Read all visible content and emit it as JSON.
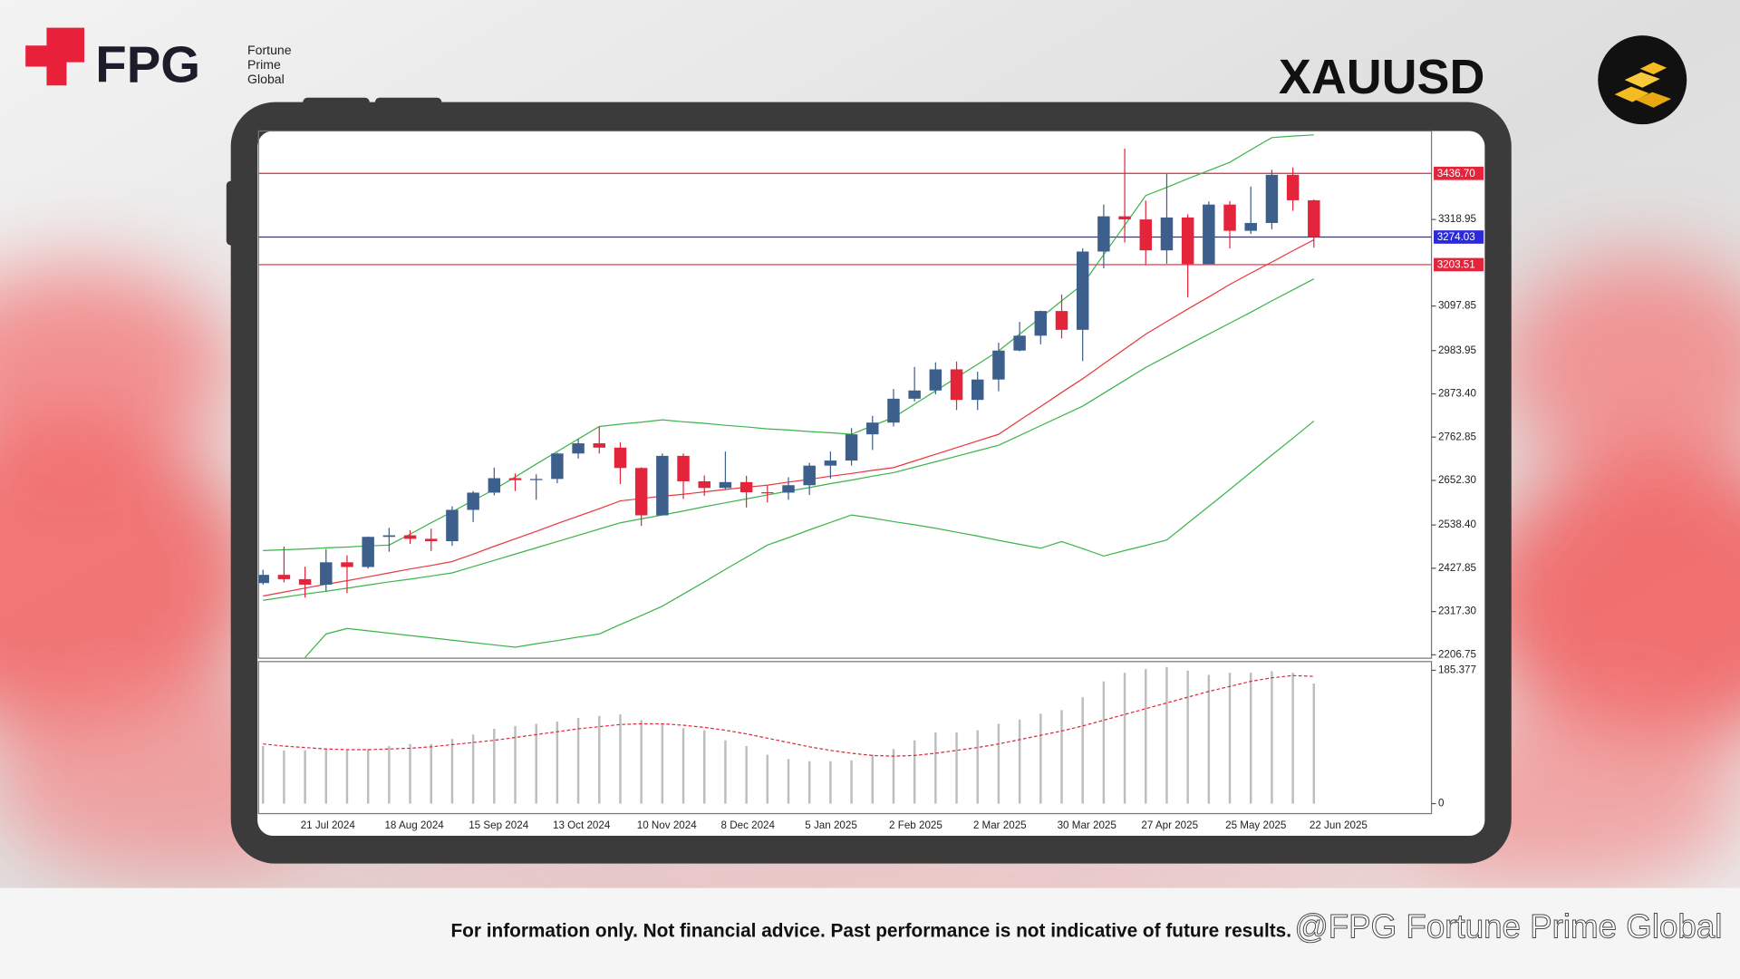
{
  "header": {
    "brand": "FPG",
    "brand_sub": [
      "Fortune",
      "Prime",
      "Global"
    ],
    "symbol": "XAUUSD"
  },
  "footer": {
    "disclaimer": "For information only. Not financial advice. Past performance is not indicative of future results.",
    "watermark": "@FPG Fortune Prime Global"
  },
  "chart_data": [
    {
      "type": "candlestick",
      "categories": [
        null,
        null,
        "21 Jul 2024",
        null,
        null,
        null,
        "18 Aug 2024",
        null,
        null,
        null,
        "15 Sep 2024",
        null,
        null,
        null,
        "13 Oct 2024",
        null,
        null,
        null,
        "10 Nov 2024",
        null,
        null,
        null,
        "8 Dec 2024",
        null,
        null,
        null,
        "5 Jan 2025",
        null,
        null,
        null,
        "2 Feb 2025",
        null,
        null,
        null,
        "2 Mar 2025",
        null,
        null,
        null,
        "30 Mar 2025",
        null,
        null,
        null,
        "27 Apr 2025",
        null,
        null,
        null,
        "25 May 2025",
        null,
        null,
        null,
        "22 Jun 2025"
      ],
      "open": [
        2390,
        2411,
        2400,
        2386,
        2443,
        2431,
        2508,
        2512,
        2503,
        2497,
        2577,
        2621,
        2658,
        2653,
        2656,
        2721,
        2747,
        2736,
        2684,
        2563,
        2715,
        2650,
        2633,
        2648,
        2622,
        2621,
        2640,
        2690,
        2703,
        2770,
        2800,
        2861,
        2882,
        2936,
        2858,
        2910,
        2984,
        3022,
        3085,
        3037,
        3237,
        3327,
        3319,
        3240,
        3324,
        3205,
        3357,
        3290,
        3310,
        3433,
        3368
      ],
      "high": [
        2424,
        2483,
        2432,
        2477,
        2461,
        2509,
        2531,
        2525,
        2529,
        2586,
        2625,
        2685,
        2670,
        2668,
        2723,
        2758,
        2790,
        2750,
        2686,
        2721,
        2721,
        2665,
        2726,
        2664,
        2639,
        2660,
        2697,
        2726,
        2786,
        2817,
        2886,
        2942,
        2954,
        2956,
        2930,
        3004,
        3057,
        3086,
        3127,
        3245,
        3357,
        3500,
        3367,
        3435,
        3332,
        3365,
        3366,
        3403,
        3446,
        3452,
        3370
      ],
      "low": [
        2386,
        2392,
        2353,
        2369,
        2364,
        2427,
        2470,
        2490,
        2472,
        2485,
        2546,
        2614,
        2625,
        2603,
        2645,
        2708,
        2721,
        2643,
        2536,
        2563,
        2605,
        2613,
        2630,
        2583,
        2596,
        2603,
        2615,
        2657,
        2690,
        2730,
        2790,
        2854,
        2872,
        2832,
        2832,
        2880,
        2982,
        3000,
        3015,
        2957,
        3194,
        3260,
        3202,
        3206,
        3120,
        3205,
        3245,
        3282,
        3294,
        3341,
        3247
      ],
      "close": [
        2411,
        2400,
        2386,
        2443,
        2431,
        2508,
        2512,
        2503,
        2497,
        2577,
        2621,
        2658,
        2653,
        2656,
        2721,
        2747,
        2736,
        2684,
        2563,
        2715,
        2650,
        2633,
        2648,
        2622,
        2621,
        2640,
        2690,
        2703,
        2770,
        2800,
        2861,
        2882,
        2936,
        2858,
        2910,
        2984,
        3022,
        3085,
        3037,
        3237,
        3327,
        3319,
        3240,
        3324,
        3205,
        3357,
        3290,
        3310,
        3433,
        3368,
        3274
      ],
      "up_color": "#3d5f8c",
      "down_color": "#e3243b",
      "series": [
        {
          "color": "#e8383d",
          "values": [
            2357,
            2367,
            2377,
            2387,
            2396,
            2406,
            2416,
            2426,
            2435,
            2445,
            2464,
            2484,
            2503,
            2522,
            2542,
            2561,
            2580,
            2600,
            2606,
            2612,
            2617,
            2623,
            2629,
            2635,
            2640,
            2648,
            2655,
            2663,
            2670,
            2678,
            2685,
            2702,
            2719,
            2736,
            2753,
            2770,
            2806,
            2841,
            2877,
            2912,
            2950,
            2988,
            3026,
            3058,
            3090,
            3121,
            3153,
            3182,
            3210,
            3239,
            3267
          ]
        },
        {
          "color": "#3cb44b",
          "values": [
            2346,
            2354,
            2362,
            2369,
            2377,
            2385,
            2393,
            2400,
            2408,
            2416,
            2432,
            2448,
            2464,
            2480,
            2496,
            2512,
            2528,
            2544,
            2554,
            2564,
            2574,
            2585,
            2595,
            2605,
            2615,
            2625,
            2634,
            2644,
            2653,
            2663,
            2672,
            2686,
            2700,
            2714,
            2728,
            2742,
            2767,
            2792,
            2817,
            2842,
            2875,
            2908,
            2941,
            2969,
            2998,
            3026,
            3054,
            3082,
            3111,
            3139,
            3167
          ]
        },
        {
          "color": "#3cb44b",
          "values": [
            2473,
            2475,
            2477,
            2480,
            2482,
            2485,
            2487,
            2515,
            2544,
            2572,
            2601,
            2629,
            2661,
            2694,
            2726,
            2758,
            2790,
            2796,
            2801,
            2807,
            2802,
            2798,
            2793,
            2789,
            2784,
            2781,
            2777,
            2774,
            2770,
            2792,
            2813,
            2847,
            2881,
            2915,
            2949,
            2983,
            3026,
            3068,
            3111,
            3153,
            3229,
            3304,
            3380,
            3401,
            3423,
            3444,
            3465,
            3497,
            3528,
            3532,
            3535
          ]
        },
        {
          "color": "#3cb44b",
          "values": [
            null,
            null,
            2200,
            2260,
            2274,
            2268,
            2262,
            2256,
            2250,
            2244,
            2238,
            2232,
            2226,
            2235,
            2243,
            2252,
            2260,
            2284,
            2307,
            2331,
            2362,
            2393,
            2425,
            2456,
            2487,
            2506,
            2526,
            2545,
            2564,
            2556,
            2547,
            2539,
            2530,
            2520,
            2510,
            2499,
            2489,
            2479,
            2496,
            2478,
            2459,
            2473,
            2486,
            2500,
            2543,
            2586,
            2629,
            2673,
            2717,
            2760,
            2804
          ]
        }
      ],
      "levels": [
        {
          "value": 3436.7,
          "label": "3436.70",
          "color": "#e3243b"
        },
        {
          "value": 3274.03,
          "label": "3274.03",
          "color": "#2a2ad8"
        },
        {
          "value": 3203.51,
          "label": "3203.51",
          "color": "#e3243b"
        }
      ],
      "ylim": [
        2198,
        3545
      ],
      "yticks": [
        2206.75,
        {
          "value": 2317.3,
          "label": "2317.30"
        },
        2427.85,
        {
          "value": 2538.4,
          "label": "2538.40"
        },
        {
          "value": 2652.3,
          "label": "2652.30"
        },
        2762.85,
        {
          "value": 2873.4,
          "label": "2873.40"
        },
        2983.95,
        3097.85,
        3318.95
      ]
    },
    {
      "type": "bar",
      "color": "#bdbdbd",
      "values": [
        80,
        74,
        74,
        76,
        74,
        76,
        80,
        83,
        83,
        90,
        96,
        104,
        108,
        111,
        114,
        119,
        122,
        124,
        116,
        111,
        105,
        102,
        88,
        80,
        68,
        62,
        59,
        59,
        60,
        68,
        76,
        88,
        99,
        99,
        102,
        111,
        117,
        125,
        130,
        148,
        170,
        182,
        187,
        190,
        185,
        179,
        182,
        182,
        184,
        182,
        167
      ],
      "series": [
        {
          "color": "#e3243b",
          "dashed": true,
          "values": [
            83,
            80,
            78,
            76,
            75,
            75,
            76,
            77,
            79,
            82,
            85,
            88,
            92,
            96,
            100,
            104,
            107,
            110,
            111,
            111,
            109,
            106,
            102,
            97,
            91,
            85,
            79,
            74,
            70,
            67,
            66,
            67,
            70,
            74,
            78,
            83,
            89,
            95,
            101,
            108,
            116,
            124,
            132,
            140,
            148,
            156,
            163,
            170,
            175,
            178,
            177
          ]
        }
      ],
      "ylim": [
        0,
        196
      ],
      "yticks": [
        0,
        185.377
      ]
    }
  ]
}
